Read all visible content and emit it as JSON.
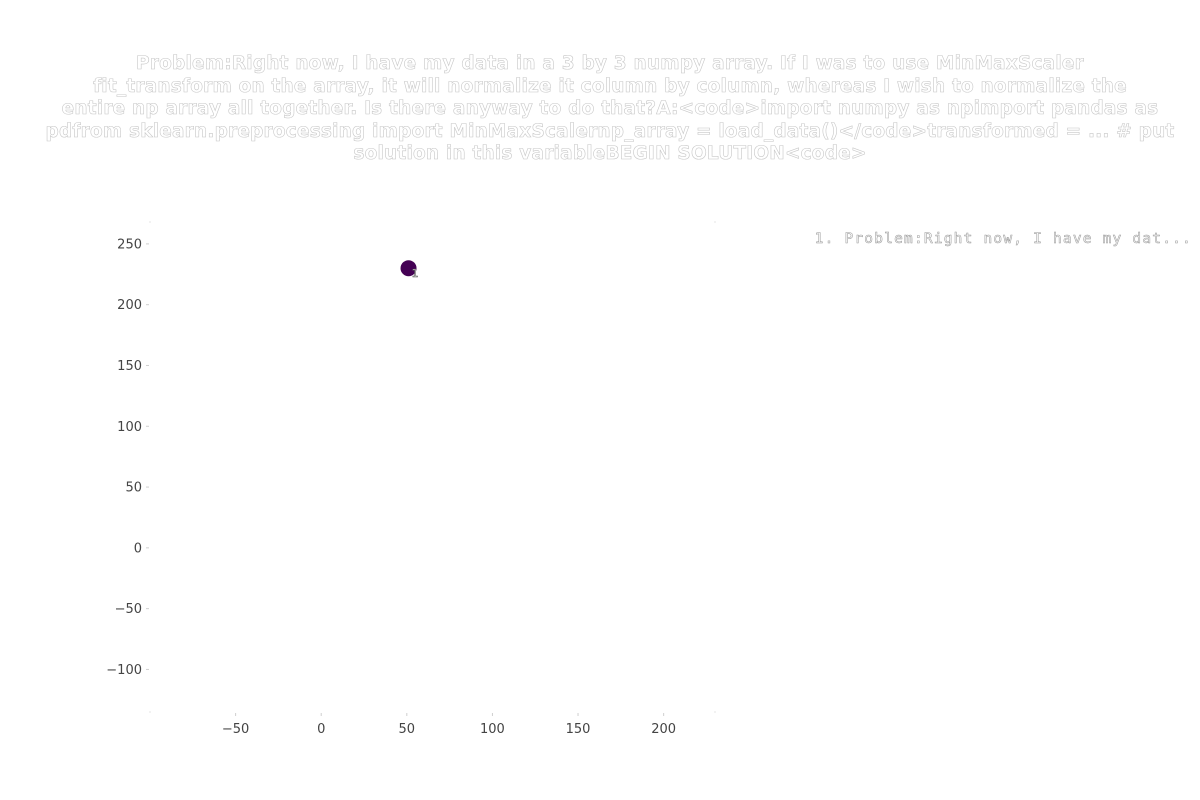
{
  "chart_data": {
    "type": "scatter",
    "title_lines": [
      "Problem:Right now, I have my data in a 3 by 3 numpy array. If I was to use MinMaxScaler",
      "fit_transform on the array, it will normalize it column by column, whereas I wish to normalize the",
      "entire np array all together. Is there anyway to do that?A:<code>import numpy as npimport pandas as",
      "pdfrom sklearn.preprocessing import MinMaxScalernp_array = load_data()</code>transformed = ... # put",
      "solution in this variableBEGIN SOLUTION<code>"
    ],
    "x_ticks": [
      -50,
      0,
      50,
      100,
      150,
      200
    ],
    "y_ticks": [
      250,
      200,
      150,
      100,
      50,
      0,
      -50,
      -100
    ],
    "xlim": [
      -100,
      230
    ],
    "ylim": [
      -135,
      268
    ],
    "points": [
      {
        "x": 51,
        "y": 230,
        "label": "1",
        "color": "#440154"
      }
    ],
    "legend": [
      {
        "text": "1. Problem:Right now, I have my dat..."
      }
    ],
    "grid": false
  }
}
